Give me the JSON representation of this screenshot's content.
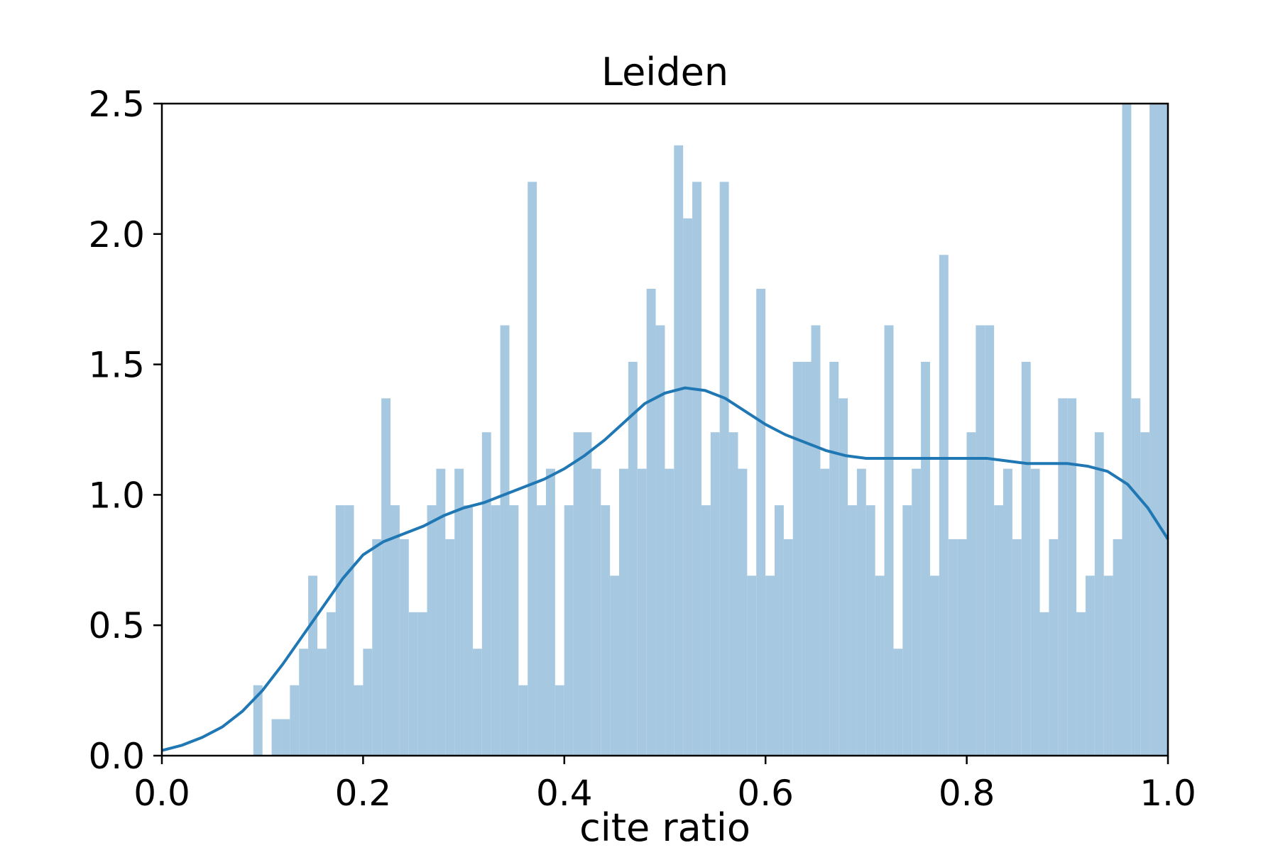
{
  "chart_data": {
    "type": "bar",
    "title": "Leiden",
    "xlabel": "cite ratio",
    "ylabel": "",
    "xlim": [
      0.0,
      1.0
    ],
    "ylim": [
      0.0,
      2.5
    ],
    "x_ticks": [
      "0.0",
      "0.2",
      "0.4",
      "0.6",
      "0.8",
      "1.0"
    ],
    "y_ticks": [
      "0.0",
      "0.5",
      "1.0",
      "1.5",
      "2.0",
      "2.5"
    ],
    "grid": false,
    "legend": "none",
    "colors": {
      "bars": "#a6c8e0",
      "kde_line": "#1f77b4",
      "axes": "#000000"
    },
    "histogram": {
      "bin_start": 0.0,
      "bin_width": 0.00909,
      "values": [
        0,
        0,
        0,
        0,
        0,
        0,
        0,
        0,
        0,
        0,
        0.27,
        0,
        0.14,
        0.14,
        0.27,
        0.41,
        0.69,
        0.41,
        0.55,
        0.96,
        0.96,
        0.27,
        0.41,
        0.83,
        1.37,
        0.96,
        0.83,
        0.55,
        0.55,
        0.96,
        1.1,
        0.83,
        1.1,
        0.96,
        0.41,
        1.24,
        0.96,
        1.65,
        0.96,
        0.27,
        2.2,
        0.96,
        1.1,
        0.27,
        0.96,
        1.24,
        1.24,
        1.1,
        0.96,
        0.69,
        1.1,
        1.51,
        1.1,
        1.79,
        1.65,
        1.1,
        2.34,
        2.06,
        2.2,
        0.96,
        1.24,
        2.2,
        1.24,
        1.1,
        0.69,
        1.79,
        0.69,
        0.96,
        0.83,
        1.51,
        1.51,
        1.65,
        1.1,
        1.51,
        1.37,
        0.96,
        1.1,
        0.96,
        0.69,
        1.65,
        0.41,
        0.96,
        1.1,
        1.51,
        0.69,
        1.92,
        0.83,
        0.83,
        1.24,
        1.65,
        1.65,
        0.96,
        1.1,
        0.83,
        1.51,
        1.1,
        0.55,
        0.83,
        1.37,
        1.37,
        0.55,
        0.69,
        1.24,
        0.69,
        0.83,
        2.54,
        1.37,
        1.24,
        2.54,
        2.54
      ]
    },
    "kde": {
      "x": [
        0.0,
        0.02,
        0.04,
        0.06,
        0.08,
        0.1,
        0.12,
        0.14,
        0.16,
        0.18,
        0.2,
        0.22,
        0.24,
        0.26,
        0.28,
        0.3,
        0.32,
        0.34,
        0.36,
        0.38,
        0.4,
        0.42,
        0.44,
        0.46,
        0.48,
        0.5,
        0.52,
        0.54,
        0.56,
        0.58,
        0.6,
        0.62,
        0.64,
        0.66,
        0.68,
        0.7,
        0.72,
        0.74,
        0.76,
        0.78,
        0.8,
        0.82,
        0.84,
        0.86,
        0.88,
        0.9,
        0.92,
        0.94,
        0.96,
        0.98,
        1.0
      ],
      "y": [
        0.02,
        0.04,
        0.07,
        0.11,
        0.17,
        0.25,
        0.35,
        0.46,
        0.57,
        0.68,
        0.77,
        0.82,
        0.85,
        0.88,
        0.92,
        0.95,
        0.97,
        1.0,
        1.03,
        1.06,
        1.1,
        1.15,
        1.21,
        1.28,
        1.35,
        1.39,
        1.41,
        1.4,
        1.37,
        1.32,
        1.27,
        1.23,
        1.2,
        1.17,
        1.15,
        1.14,
        1.14,
        1.14,
        1.14,
        1.14,
        1.14,
        1.14,
        1.13,
        1.12,
        1.12,
        1.12,
        1.11,
        1.09,
        1.04,
        0.95,
        0.83
      ]
    }
  }
}
